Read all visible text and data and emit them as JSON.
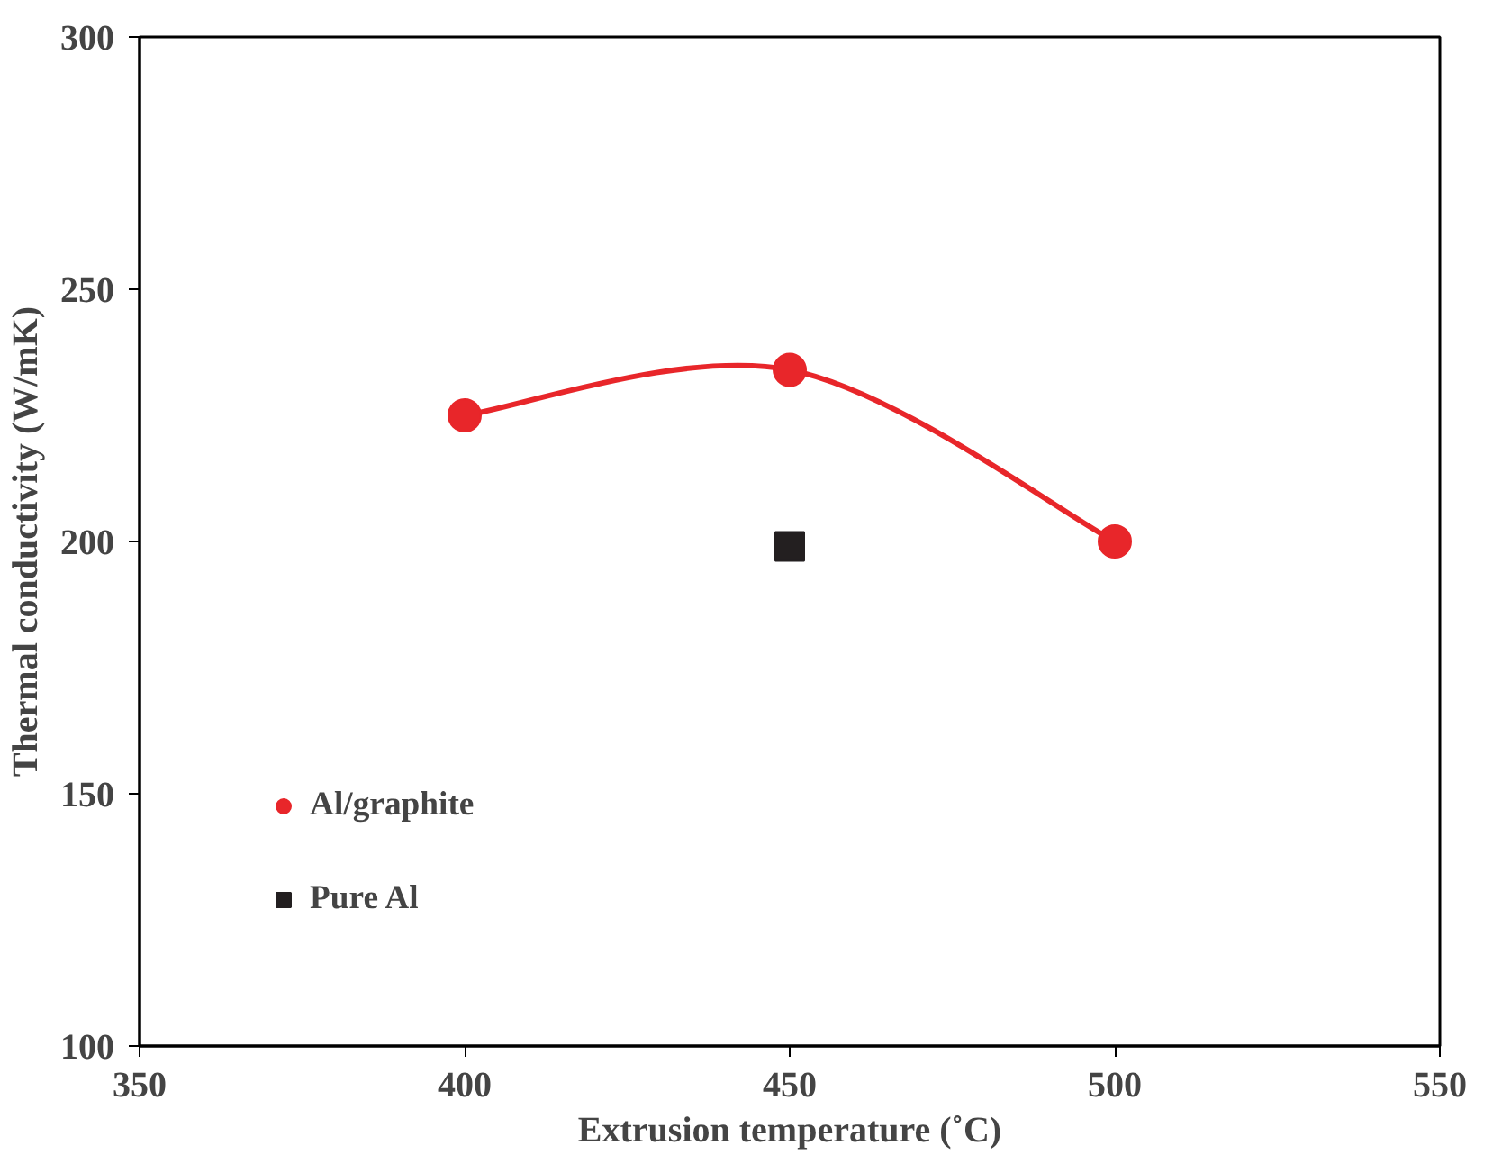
{
  "chart_data": {
    "type": "line",
    "xlabel": "Extrusion temperature (˚C)",
    "ylabel": "Thermal conductivity (W/mK)",
    "xlim": [
      350,
      550
    ],
    "xticks": [
      350,
      400,
      450,
      500,
      550
    ],
    "ylim": [
      100,
      300
    ],
    "yticks": [
      100,
      150,
      200,
      250,
      300
    ],
    "grid": false,
    "legend": "bottom left",
    "series": [
      {
        "name": "Al/graphite",
        "color": "#e8262a",
        "marker": "circle",
        "x": [
          400,
          450,
          500
        ],
        "values": [
          225,
          234,
          200
        ]
      },
      {
        "name": "Pure Al",
        "color": "#231f20",
        "type": "scatter",
        "marker": "square",
        "x": [
          450
        ],
        "values": [
          199
        ]
      }
    ]
  }
}
